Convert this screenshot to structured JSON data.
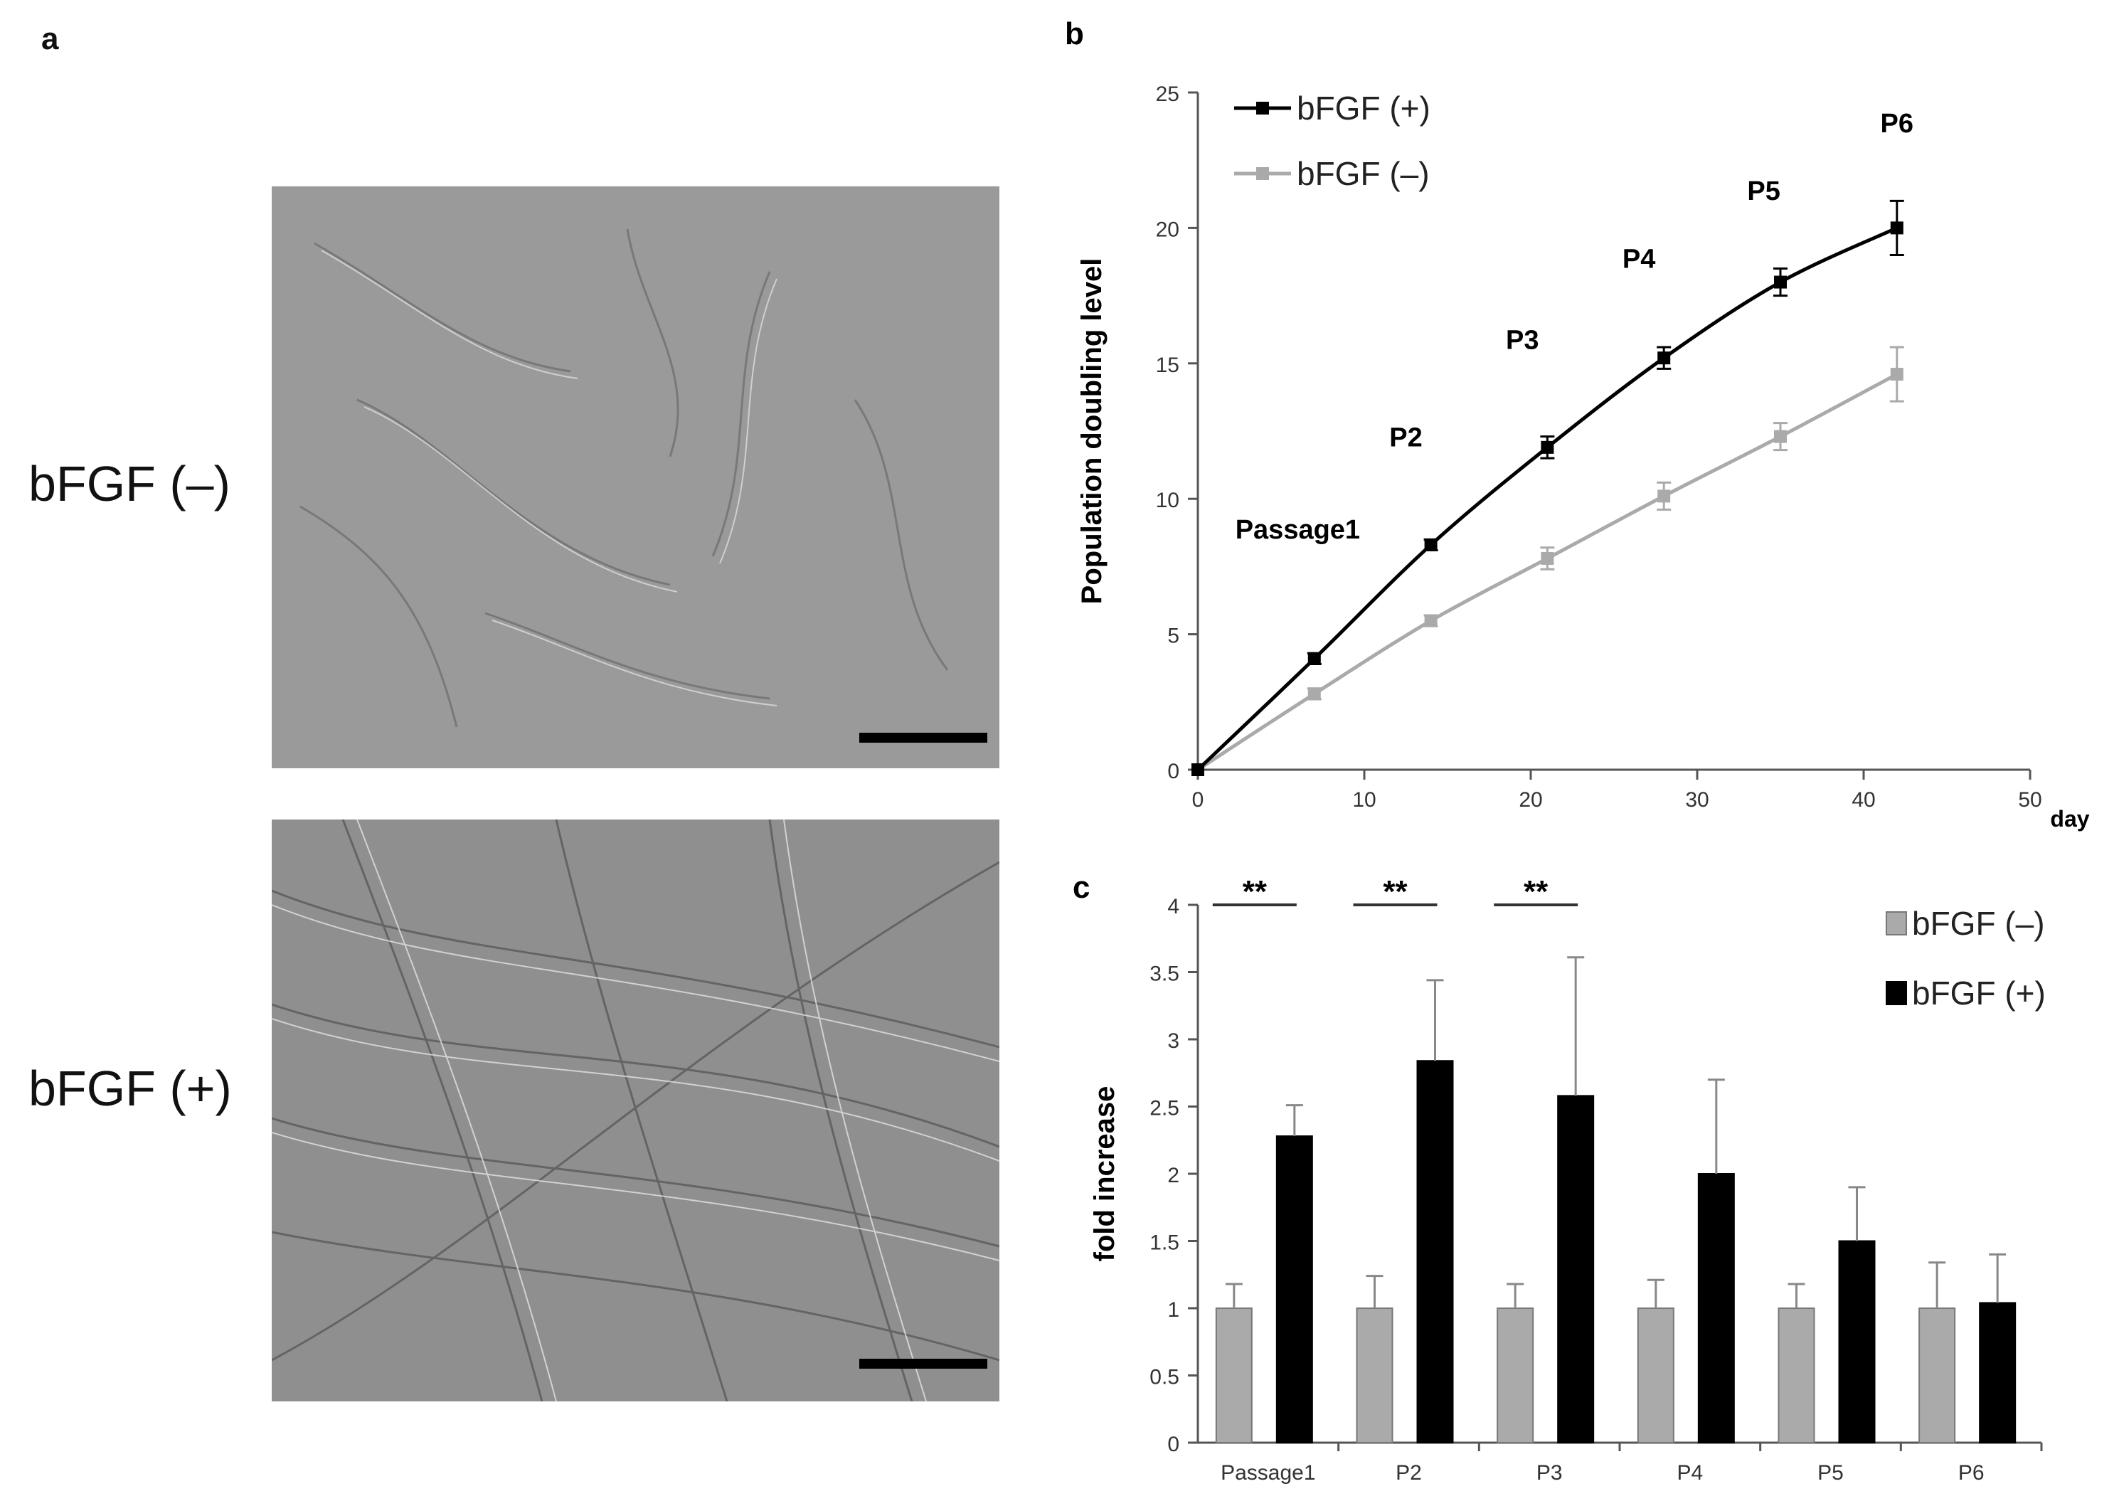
{
  "panel_a": {
    "label": "a",
    "images": [
      {
        "condition": "bFGF (–)",
        "content": "phase-contrast micrograph, sparse cells",
        "scale_bar": true
      },
      {
        "condition": "bFGF (+)",
        "content": "phase-contrast micrograph, dense elongated cells",
        "scale_bar": true
      }
    ]
  },
  "chart_data": [
    {
      "panel_label": "b",
      "type": "line",
      "title": "",
      "xlabel": "day",
      "ylabel": "Population doubling level",
      "xlim": [
        0,
        50
      ],
      "ylim": [
        0,
        25
      ],
      "xticks": [
        0,
        10,
        20,
        30,
        40,
        50
      ],
      "yticks": [
        0,
        5,
        10,
        15,
        20,
        25
      ],
      "grid": false,
      "legend_position": "top-left",
      "series": [
        {
          "name": "bFGF (+)",
          "color": "#000000",
          "x": [
            0,
            7,
            14,
            21,
            28,
            35,
            42
          ],
          "y": [
            0,
            4.1,
            8.3,
            11.9,
            15.2,
            18.0,
            20.0
          ],
          "error": [
            0,
            0.2,
            0.2,
            0.4,
            0.4,
            0.5,
            1.0
          ]
        },
        {
          "name": "bFGF (–)",
          "color": "#aaaaaa",
          "x": [
            0,
            7,
            14,
            21,
            28,
            35,
            42
          ],
          "y": [
            0,
            2.8,
            5.5,
            7.8,
            10.1,
            12.3,
            14.6
          ],
          "error": [
            0,
            0.2,
            0.2,
            0.4,
            0.5,
            0.5,
            1.0
          ]
        }
      ],
      "annotations": [
        {
          "text": "Passage1",
          "x": 6,
          "y": 8.9
        },
        {
          "text": "P2",
          "x": 12.5,
          "y": 12.3
        },
        {
          "text": "P3",
          "x": 19.5,
          "y": 15.9
        },
        {
          "text": "P4",
          "x": 26.5,
          "y": 18.9
        },
        {
          "text": "P5",
          "x": 34,
          "y": 21.4
        },
        {
          "text": "P6",
          "x": 42,
          "y": 23.9
        }
      ]
    },
    {
      "panel_label": "c",
      "type": "bar",
      "title": "",
      "xlabel": "",
      "ylabel": "fold increase",
      "categories": [
        "Passage1",
        "P2",
        "P3",
        "P4",
        "P5",
        "P6"
      ],
      "ylim": [
        0,
        4
      ],
      "yticks": [
        0,
        0.5,
        1,
        1.5,
        2,
        2.5,
        3,
        3.5,
        4
      ],
      "grid": false,
      "legend_position": "top-right",
      "series": [
        {
          "name": "bFGF (–)",
          "color": "#aaaaaa",
          "values": [
            1,
            1,
            1,
            1,
            1,
            1
          ],
          "error": [
            0.18,
            0.24,
            0.18,
            0.21,
            0.18,
            0.34
          ]
        },
        {
          "name": "bFGF (+)",
          "color": "#000000",
          "values": [
            2.28,
            2.84,
            2.58,
            2.0,
            1.5,
            1.04
          ],
          "error": [
            0.23,
            0.6,
            1.03,
            0.7,
            0.4,
            0.36
          ]
        }
      ],
      "significance": [
        {
          "category_index": 0,
          "label": "**"
        },
        {
          "category_index": 1,
          "label": "**"
        },
        {
          "category_index": 2,
          "label": "**"
        }
      ]
    }
  ]
}
